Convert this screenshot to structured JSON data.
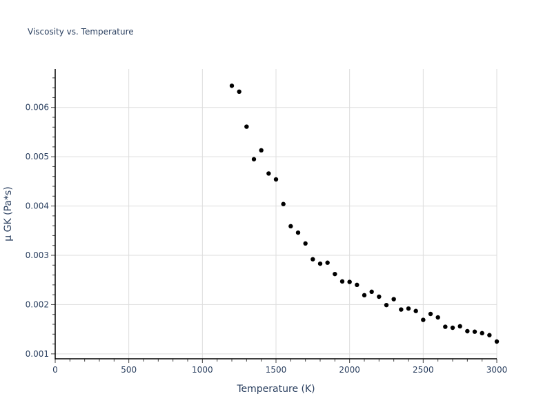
{
  "chart_data": {
    "type": "scatter",
    "title": "Viscosity vs. Temperature",
    "xlabel": "Temperature (K)",
    "ylabel": "μ GK (Pa*s)",
    "xlim": [
      0,
      3000
    ],
    "ylim": [
      0.0009,
      0.00678
    ],
    "xticks": [
      "0",
      "500",
      "1000",
      "1500",
      "2000",
      "2500",
      "3000"
    ],
    "xtick_values": [
      0,
      500,
      1000,
      1500,
      2000,
      2500,
      3000
    ],
    "yticks": [
      "0.001",
      "0.002",
      "0.003",
      "0.004",
      "0.005",
      "0.006"
    ],
    "ytick_values": [
      0.001,
      0.002,
      0.003,
      0.004,
      0.005,
      0.006
    ],
    "grid": true,
    "marker_color": "#000000",
    "x": [
      1200,
      1250,
      1300,
      1350,
      1400,
      1450,
      1500,
      1550,
      1600,
      1650,
      1700,
      1750,
      1800,
      1850,
      1900,
      1950,
      2000,
      2050,
      2100,
      2150,
      2200,
      2250,
      2300,
      2350,
      2400,
      2450,
      2500,
      2550,
      2600,
      2650,
      2700,
      2750,
      2800,
      2850,
      2900,
      2950,
      3000
    ],
    "y": [
      0.00644,
      0.00632,
      0.00561,
      0.00495,
      0.00513,
      0.00466,
      0.00454,
      0.00404,
      0.00359,
      0.00346,
      0.00324,
      0.00292,
      0.00283,
      0.00285,
      0.00262,
      0.00247,
      0.00246,
      0.0024,
      0.00219,
      0.00226,
      0.00216,
      0.00199,
      0.00211,
      0.0019,
      0.00192,
      0.00187,
      0.00169,
      0.00181,
      0.00174,
      0.00155,
      0.00153,
      0.00156,
      0.00146,
      0.00145,
      0.00142,
      0.00138,
      0.00125
    ]
  }
}
